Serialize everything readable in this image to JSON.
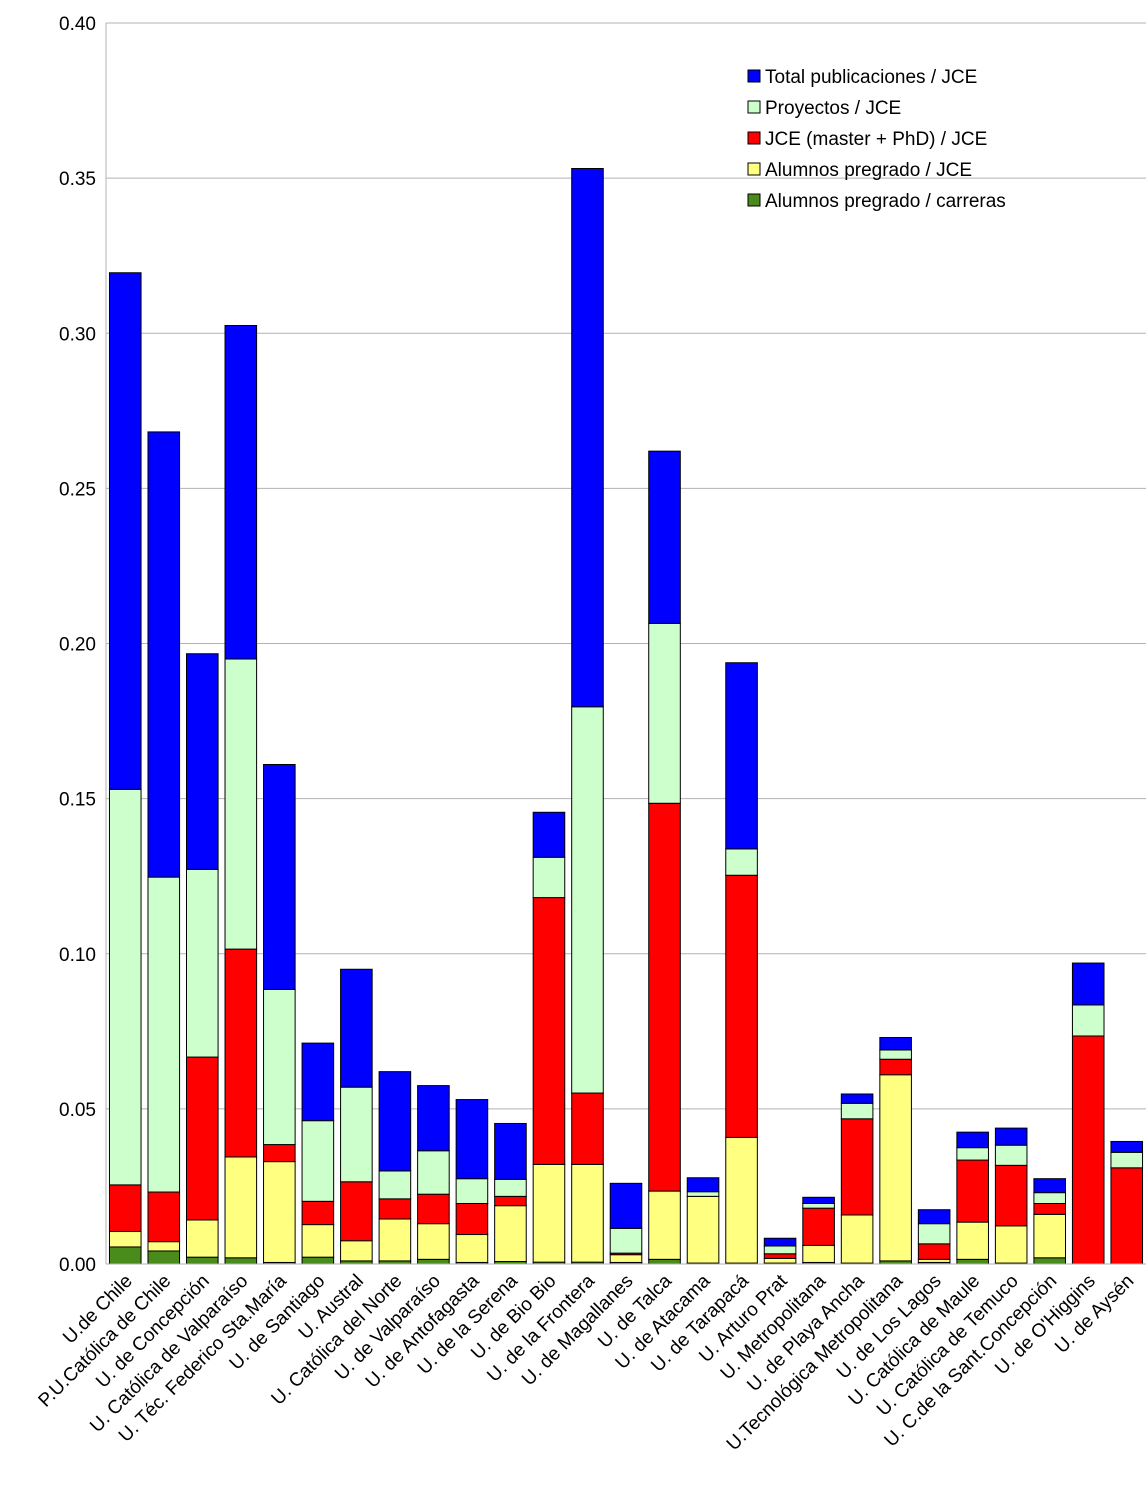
{
  "chart_data": {
    "type": "bar",
    "stacked": true,
    "title": "",
    "xlabel": "",
    "ylabel": "",
    "ylim": [
      0,
      0.4
    ],
    "yticks": [
      "0.00",
      "0.05",
      "0.10",
      "0.15",
      "0.20",
      "0.25",
      "0.30",
      "0.35",
      "0.40"
    ],
    "grid": true,
    "legend_position": "top-right",
    "categories": [
      "U.de Chile",
      "P.U.Católica de Chile",
      "U. de Concepción",
      "U. Católica de Valparaíso",
      "U. Téc. Federico Sta.María",
      "U. de Santiago",
      "U. Austral",
      "U. Católica del Norte",
      "U. de Valparaíso",
      "U. de Antofagasta",
      "U. de la Serena",
      "U. de Bio Bio",
      "U. de la Frontera",
      "U. de Magallanes",
      "U. de Talca",
      "U. de Atacama",
      "U. de Tarapacá",
      "U. Arturo Prat",
      "U. Metropolitana",
      "U. de Playa Ancha",
      "U.Tecnológica Metropolitana",
      "U. de Los Lagos",
      "U. Católica de Maule",
      "U. Católica de Temuco",
      "U. C.de la Sant.Concepción",
      "U. de O'Higgins",
      "U. de Aysén"
    ],
    "series": [
      {
        "name": "Alumnos pregrado / carreras",
        "color": "#4a8c1c",
        "values": [
          0.0055,
          0.0042,
          0.0022,
          0.002,
          0.0005,
          0.0022,
          0.001,
          0.001,
          0.0015,
          0.0005,
          0.0008,
          0.0006,
          0.0006,
          0.0005,
          0.0015,
          0.0003,
          0.0003,
          0.0003,
          0.0005,
          0.0003,
          0.001,
          0.0005,
          0.0015,
          0.0003,
          0.002,
          0.0,
          0.0
        ]
      },
      {
        "name": "Alumnos pregrado / JCE",
        "color": "#ffff80",
        "values": [
          0.005,
          0.003,
          0.012,
          0.0325,
          0.0325,
          0.0105,
          0.0065,
          0.0135,
          0.0115,
          0.009,
          0.018,
          0.0315,
          0.0315,
          0.0025,
          0.022,
          0.0215,
          0.0405,
          0.0015,
          0.0055,
          0.0155,
          0.06,
          0.001,
          0.012,
          0.012,
          0.014,
          0.0,
          0.0
        ]
      },
      {
        "name": "JCE (master + PhD) / JCE",
        "color": "#ff0000",
        "values": [
          0.015,
          0.016,
          0.0525,
          0.067,
          0.0055,
          0.0075,
          0.019,
          0.0065,
          0.0095,
          0.01,
          0.003,
          0.086,
          0.023,
          0.0005,
          0.125,
          0.0,
          0.0845,
          0.0015,
          0.012,
          0.031,
          0.005,
          0.005,
          0.02,
          0.0195,
          0.0035,
          0.0735,
          0.031
        ]
      },
      {
        "name": "Proyectos / JCE",
        "color": "#ccffcc",
        "values": [
          0.1275,
          0.1015,
          0.0605,
          0.0935,
          0.05,
          0.026,
          0.0305,
          0.009,
          0.014,
          0.008,
          0.0055,
          0.013,
          0.1245,
          0.008,
          0.058,
          0.0015,
          0.0085,
          0.0025,
          0.0015,
          0.005,
          0.003,
          0.0065,
          0.004,
          0.0065,
          0.0035,
          0.01,
          0.005
        ]
      },
      {
        "name": "Total publicaciones / JCE",
        "color": "#0000ff",
        "values": [
          0.1665,
          0.1435,
          0.0695,
          0.1075,
          0.0725,
          0.025,
          0.038,
          0.032,
          0.021,
          0.0255,
          0.018,
          0.0145,
          0.1735,
          0.0145,
          0.0555,
          0.0045,
          0.06,
          0.0025,
          0.002,
          0.003,
          0.004,
          0.0045,
          0.005,
          0.0055,
          0.0045,
          0.0135,
          0.0035
        ]
      }
    ],
    "legend_order": [
      "Total publicaciones / JCE",
      "Proyectos / JCE",
      "JCE (master + PhD) / JCE",
      "Alumnos pregrado / JCE",
      "Alumnos pregrado / carreras"
    ]
  }
}
